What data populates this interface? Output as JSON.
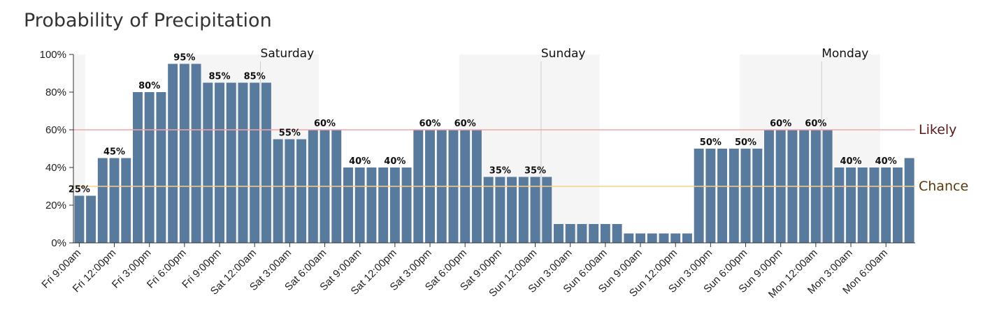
{
  "title": "Probability of Precipitation",
  "colors": {
    "bar": "#587a9c",
    "night_band": "#f5f5f5",
    "likely_line": "#f5a3a8",
    "chance_line": "#f5d08f",
    "likely_text": "#5a1a1a",
    "chance_text": "#5a3a0a",
    "axis": "#333333",
    "day_divider": "#cccccc"
  },
  "chart_data": {
    "type": "bar",
    "title": "Probability of Precipitation",
    "xlabel": "",
    "ylabel": "",
    "ylim": [
      0,
      100
    ],
    "y_ticks": [
      "0%",
      "20%",
      "40%",
      "60%",
      "80%",
      "100%"
    ],
    "start_hour": 9,
    "values": [
      25,
      25,
      45,
      45,
      45,
      80,
      80,
      80,
      95,
      95,
      95,
      85,
      85,
      85,
      85,
      85,
      85,
      55,
      55,
      55,
      60,
      60,
      60,
      40,
      40,
      40,
      40,
      40,
      40,
      60,
      60,
      60,
      60,
      60,
      60,
      35,
      35,
      35,
      35,
      35,
      35,
      10,
      10,
      10,
      10,
      10,
      10,
      5,
      5,
      5,
      5,
      5,
      5,
      50,
      50,
      50,
      50,
      50,
      50,
      60,
      60,
      60,
      60,
      60,
      60,
      40,
      40,
      40,
      40,
      40,
      40,
      45
    ],
    "x_tick_labels": [
      "Fri 9:00am",
      "Fri 12:00pm",
      "Fri 3:00pm",
      "Fri 6:00pm",
      "Fri 9:00pm",
      "Sat 12:00am",
      "Sat 3:00am",
      "Sat 6:00am",
      "Sat 9:00am",
      "Sat 12:00pm",
      "Sat 3:00pm",
      "Sat 6:00pm",
      "Sat 9:00pm",
      "Sun 12:00am",
      "Sun 3:00am",
      "Sun 6:00am",
      "Sun 9:00am",
      "Sun 12:00pm",
      "Sun 3:00pm",
      "Sun 6:00pm",
      "Sun 9:00pm",
      "Mon 12:00am",
      "Mon 3:00am",
      "Mon 6:00am"
    ],
    "data_labels": [
      {
        "index": 0,
        "text": "25%"
      },
      {
        "index": 3,
        "text": "45%"
      },
      {
        "index": 6,
        "text": "80%"
      },
      {
        "index": 9,
        "text": "95%"
      },
      {
        "index": 12,
        "text": "85%"
      },
      {
        "index": 15,
        "text": "85%"
      },
      {
        "index": 18,
        "text": "55%"
      },
      {
        "index": 21,
        "text": "60%"
      },
      {
        "index": 24,
        "text": "40%"
      },
      {
        "index": 27,
        "text": "40%"
      },
      {
        "index": 30,
        "text": "60%"
      },
      {
        "index": 33,
        "text": "60%"
      },
      {
        "index": 36,
        "text": "35%"
      },
      {
        "index": 39,
        "text": "35%"
      },
      {
        "index": 54,
        "text": "50%"
      },
      {
        "index": 57,
        "text": "50%"
      },
      {
        "index": 60,
        "text": "60%"
      },
      {
        "index": 63,
        "text": "60%"
      },
      {
        "index": 66,
        "text": "40%"
      },
      {
        "index": 69,
        "text": "40%"
      }
    ],
    "day_markers": [
      {
        "index": 15,
        "label": "Saturday"
      },
      {
        "index": 39,
        "label": "Sunday"
      },
      {
        "index": 63,
        "label": "Monday"
      }
    ],
    "night_bands": [
      [
        0,
        1
      ],
      [
        9,
        21
      ],
      [
        33,
        45
      ],
      [
        57,
        69
      ]
    ],
    "thresholds": [
      {
        "label": "Likely",
        "value": 60
      },
      {
        "label": "Chance",
        "value": 30
      }
    ],
    "grid": false,
    "legend": "none"
  }
}
